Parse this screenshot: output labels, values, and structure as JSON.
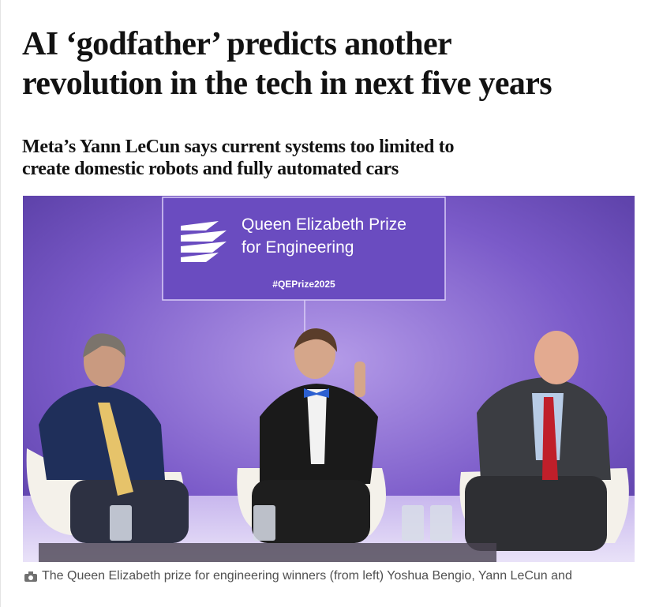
{
  "headline": {
    "lines": [
      "AI ‘godfather’ predicts another",
      "revolution in the tech in next five years"
    ]
  },
  "standfirst": {
    "lines": [
      "Meta’s Yann LeCun says current systems too limited to",
      "create domestic robots and fully automated cars"
    ]
  },
  "image": {
    "sign_title": [
      "Queen Elizabeth Prize",
      "for Engineering"
    ],
    "sign_hashtag": "#QEPrize2025"
  },
  "caption": "The Queen Elizabeth prize for engineering winners (from left) Yoshua Bengio, Yann LeCun and"
}
